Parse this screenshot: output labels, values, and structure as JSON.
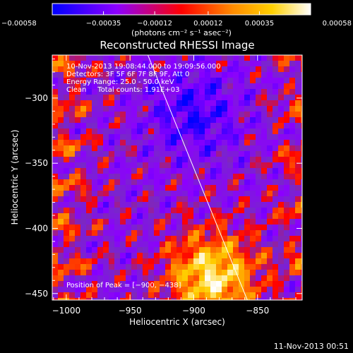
{
  "chart_data": {
    "type": "heatmap",
    "title": "Reconstructed RHESSI Image",
    "xlabel": "Heliocentric X (arcsec)",
    "ylabel": "Heliocentric Y (arcsec)",
    "xlim": [
      -1011,
      -815
    ],
    "ylim": [
      -455,
      -267
    ],
    "x_ticks": [
      -1000,
      -950,
      -900,
      -850
    ],
    "x_tick_labels": [
      "−1000",
      "−950",
      "−900",
      "−850"
    ],
    "y_ticks": [
      -300,
      -350,
      -400,
      -450
    ],
    "y_tick_labels": [
      "−300",
      "−350",
      "−400",
      "−450"
    ],
    "colorbar": {
      "range": [
        -0.00058,
        0.00058
      ],
      "ticks": [
        -0.00058,
        -0.00035,
        -0.00012,
        0.00012,
        0.00035,
        0.00058
      ],
      "tick_labels": [
        "−0.00058",
        "−0.00035",
        "−0.00012",
        "0.00012",
        "0.00035",
        "0.00058"
      ],
      "units": "(photons cm⁻² s⁻¹ asec⁻²)",
      "colors": [
        "#0000ff",
        "#8c00ff",
        "#ff0000",
        "#ff8c00",
        "#ffd000",
        "#ffffff"
      ]
    },
    "limb_line": {
      "x": [
        -936,
        -858
      ],
      "y": [
        -267,
        -455
      ]
    },
    "peak": {
      "x": -900,
      "y": -438
    },
    "grid": false
  },
  "info": {
    "time_range": "10-Nov-2013 19:08:44.000 to 19:09:56.000",
    "detectors": "Detectors: 3F 5F 6F 7F 8F 9F, Att 0",
    "energy_range": "Energy Range: 25.0 - 50.0 keV",
    "clean_counts": "Clean     Total counts: 1.91E+03",
    "peak_position": "Position of Peak = [−900, −438]"
  },
  "footer": {
    "timestamp": "11-Nov-2013 00:51"
  }
}
